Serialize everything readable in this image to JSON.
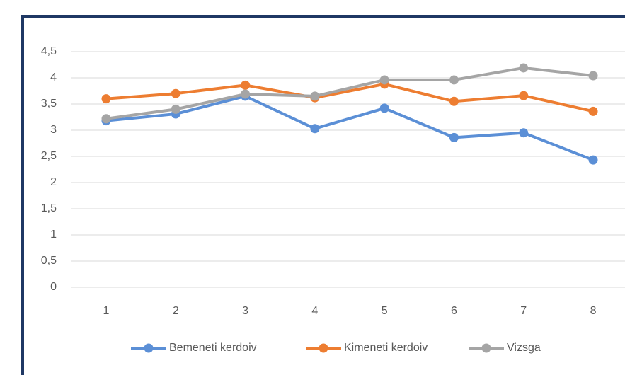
{
  "chart_data": {
    "type": "line",
    "categories": [
      "1",
      "2",
      "3",
      "4",
      "5",
      "6",
      "7",
      "8"
    ],
    "series": [
      {
        "name": "Bemeneti kerdoiv",
        "color": "#5b8fd6",
        "values": [
          3.18,
          3.31,
          3.65,
          3.03,
          3.42,
          2.86,
          2.95,
          2.43
        ]
      },
      {
        "name": "Kimeneti kerdoiv",
        "color": "#ed7d31",
        "values": [
          3.6,
          3.7,
          3.86,
          3.62,
          3.88,
          3.55,
          3.66,
          3.36
        ]
      },
      {
        "name": "Vizsga",
        "color": "#a5a5a5",
        "values": [
          3.22,
          3.4,
          3.69,
          3.65,
          3.96,
          3.96,
          4.19,
          4.04
        ]
      }
    ],
    "ylim": [
      0,
      4.5
    ],
    "yticks": [
      0,
      {
        "value": 0.5,
        "label": "0,5"
      },
      1,
      {
        "value": 1.5,
        "label": "1,5"
      },
      2,
      {
        "value": 2.5,
        "label": "2,5"
      },
      3,
      {
        "value": 3.5,
        "label": "3,5"
      },
      4,
      {
        "value": 4.5,
        "label": "4,5"
      }
    ],
    "grid": true,
    "legend": "bottom"
  }
}
